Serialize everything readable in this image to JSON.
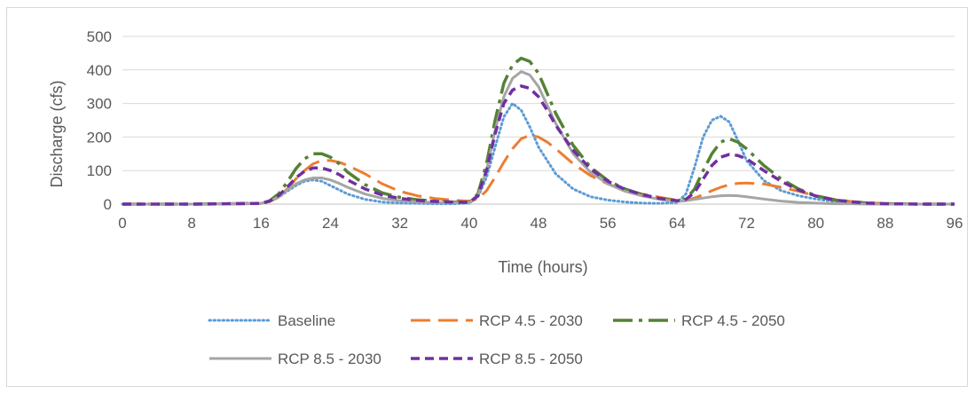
{
  "chart_data": {
    "type": "line",
    "title": "",
    "xlabel": "Time (hours)",
    "ylabel": "Discharge (cfs)",
    "xlim": [
      0,
      96
    ],
    "ylim": [
      0,
      500
    ],
    "xticks": [
      0,
      8,
      16,
      24,
      32,
      40,
      48,
      56,
      64,
      72,
      80,
      88,
      96
    ],
    "yticks": [
      0,
      100,
      200,
      300,
      400,
      500
    ],
    "grid": "horizontal",
    "legend": "bottom",
    "series": [
      {
        "name": "Baseline",
        "color": "#5b9bd5",
        "dash": "dotted",
        "x": [
          0,
          8,
          16,
          17,
          18,
          19,
          20,
          21,
          22,
          23,
          24,
          26,
          28,
          30,
          32,
          34,
          36,
          38,
          40,
          41,
          42,
          43,
          44,
          45,
          46,
          47,
          48,
          50,
          52,
          54,
          56,
          58,
          60,
          62,
          64,
          65,
          66,
          67,
          68,
          69,
          70,
          71,
          72,
          74,
          76,
          78,
          80,
          82,
          84,
          86,
          88,
          92,
          96
        ],
        "y": [
          0,
          0,
          2,
          8,
          20,
          38,
          55,
          68,
          72,
          68,
          55,
          30,
          14,
          6,
          3,
          2,
          1,
          1,
          3,
          20,
          80,
          170,
          260,
          300,
          280,
          230,
          170,
          90,
          45,
          22,
          12,
          6,
          3,
          2,
          5,
          30,
          110,
          200,
          250,
          262,
          245,
          190,
          130,
          70,
          40,
          25,
          15,
          8,
          4,
          2,
          1,
          0,
          0
        ]
      },
      {
        "name": "RCP 4.5 - 2030",
        "color": "#ed7d31",
        "dash": "longdash",
        "x": [
          0,
          8,
          16,
          17,
          18,
          19,
          20,
          21,
          22,
          23,
          24,
          25,
          26,
          28,
          30,
          32,
          34,
          36,
          38,
          40,
          41,
          42,
          43,
          44,
          45,
          46,
          47,
          48,
          49,
          50,
          52,
          54,
          56,
          58,
          60,
          62,
          64,
          65,
          66,
          67,
          68,
          69,
          70,
          71,
          72,
          74,
          76,
          78,
          80,
          82,
          84,
          86,
          88,
          92,
          96
        ],
        "y": [
          0,
          0,
          2,
          8,
          20,
          45,
          75,
          100,
          120,
          130,
          130,
          125,
          115,
          90,
          60,
          38,
          25,
          17,
          12,
          9,
          15,
          40,
          80,
          125,
          165,
          195,
          205,
          200,
          185,
          165,
          120,
          85,
          60,
          42,
          30,
          20,
          12,
          12,
          18,
          28,
          40,
          50,
          58,
          62,
          63,
          60,
          50,
          38,
          25,
          15,
          8,
          4,
          2,
          0,
          0
        ]
      },
      {
        "name": "RCP 4.5 - 2050",
        "color": "#548235",
        "dash": "dashdot",
        "x": [
          0,
          8,
          16,
          17,
          18,
          19,
          20,
          21,
          22,
          23,
          24,
          25,
          26,
          28,
          30,
          32,
          34,
          36,
          38,
          40,
          41,
          42,
          43,
          44,
          45,
          46,
          47,
          48,
          49,
          50,
          52,
          54,
          56,
          58,
          60,
          62,
          64,
          65,
          66,
          67,
          68,
          69,
          70,
          71,
          72,
          74,
          76,
          78,
          80,
          82,
          84,
          86,
          88,
          92,
          96
        ],
        "y": [
          0,
          0,
          2,
          10,
          30,
          65,
          105,
          135,
          150,
          150,
          140,
          120,
          95,
          58,
          33,
          20,
          13,
          9,
          6,
          5,
          30,
          120,
          250,
          360,
          415,
          435,
          425,
          390,
          330,
          270,
          175,
          110,
          70,
          45,
          28,
          16,
          9,
          15,
          45,
          100,
          150,
          185,
          195,
          185,
          165,
          115,
          75,
          45,
          25,
          13,
          7,
          3,
          1,
          0,
          0
        ]
      },
      {
        "name": "RCP 8.5 - 2030",
        "color": "#a5a5a5",
        "dash": "solid",
        "x": [
          0,
          8,
          16,
          17,
          18,
          19,
          20,
          21,
          22,
          23,
          24,
          25,
          26,
          28,
          30,
          32,
          34,
          36,
          38,
          40,
          41,
          42,
          43,
          44,
          45,
          46,
          47,
          48,
          49,
          50,
          52,
          54,
          56,
          58,
          60,
          62,
          64,
          65,
          66,
          67,
          68,
          69,
          70,
          71,
          72,
          74,
          76,
          78,
          80,
          82,
          84,
          86,
          88,
          92,
          96
        ],
        "y": [
          0,
          0,
          2,
          8,
          22,
          42,
          60,
          72,
          78,
          78,
          72,
          62,
          50,
          30,
          17,
          10,
          7,
          5,
          4,
          4,
          25,
          100,
          220,
          320,
          375,
          395,
          385,
          350,
          295,
          240,
          150,
          95,
          60,
          38,
          24,
          14,
          8,
          10,
          14,
          18,
          22,
          25,
          26,
          25,
          22,
          15,
          9,
          5,
          3,
          1,
          1,
          0,
          0,
          0,
          0
        ]
      },
      {
        "name": "RCP 8.5 - 2050",
        "color": "#7030a0",
        "dash": "shortdash",
        "x": [
          0,
          8,
          16,
          17,
          18,
          19,
          20,
          21,
          22,
          23,
          24,
          25,
          26,
          28,
          30,
          32,
          34,
          36,
          38,
          40,
          41,
          42,
          43,
          44,
          45,
          46,
          47,
          48,
          49,
          50,
          52,
          54,
          56,
          58,
          60,
          62,
          64,
          65,
          66,
          67,
          68,
          69,
          70,
          71,
          72,
          74,
          76,
          78,
          80,
          82,
          84,
          86,
          88,
          92,
          96
        ],
        "y": [
          0,
          0,
          2,
          9,
          25,
          50,
          78,
          98,
          108,
          108,
          100,
          88,
          72,
          45,
          27,
          17,
          11,
          8,
          6,
          5,
          25,
          100,
          210,
          300,
          340,
          352,
          345,
          320,
          280,
          235,
          160,
          105,
          68,
          44,
          28,
          17,
          10,
          14,
          35,
          75,
          115,
          140,
          148,
          145,
          135,
          100,
          68,
          42,
          24,
          13,
          7,
          3,
          1,
          0,
          0
        ]
      }
    ]
  }
}
